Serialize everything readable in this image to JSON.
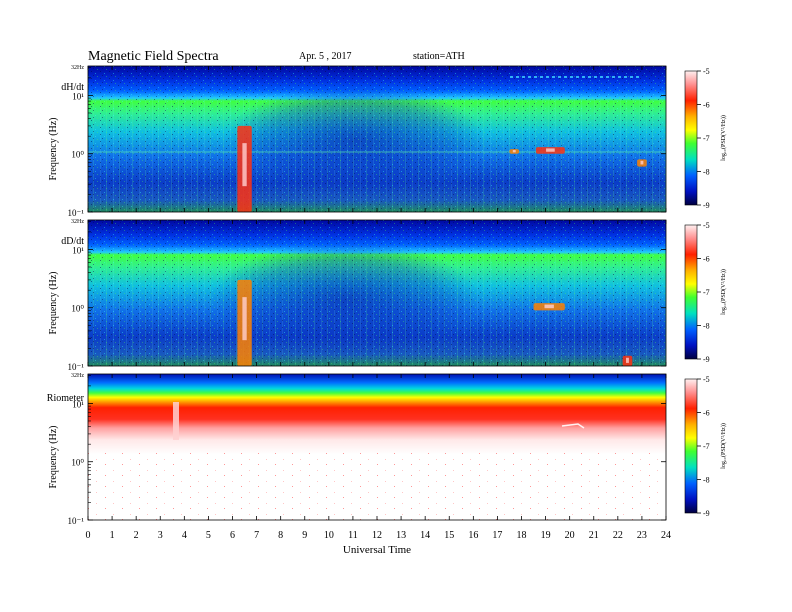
{
  "header": {
    "title": "Magnetic  Field  Spectra",
    "date": "Apr. 5  , 2017",
    "station": "station=ATH"
  },
  "chart_data": [
    {
      "type": "heatmap",
      "panel_label": "dH/dt",
      "ylabel": "Frequency  (Hz)",
      "y_scale": "log",
      "y_top_label": "32Hz",
      "y_ticks": [
        "10¹",
        "10⁰",
        "10⁻¹"
      ],
      "x_ticks": [
        "0",
        "1",
        "2",
        "3",
        "4",
        "5",
        "6",
        "7",
        "8",
        "9",
        "10",
        "11",
        "12",
        "13",
        "14",
        "15",
        "16",
        "17",
        "18",
        "19",
        "20",
        "21",
        "22",
        "23",
        "24"
      ],
      "colorbar_ticks": [
        "-5",
        "-6",
        "-7",
        "-8",
        "-9"
      ],
      "colorbar_label": "log₁₀(PSD(V²/Hz))",
      "colorbar_range": [
        -9,
        -5
      ],
      "features": [
        {
          "time": [
            6.2,
            6.8
          ],
          "freq": [
            0.1,
            3
          ],
          "level": -6
        },
        {
          "time": [
            17.5,
            17.9
          ],
          "freq": [
            1.0,
            1.2
          ],
          "level": -7
        },
        {
          "time": [
            18.6,
            19.8
          ],
          "freq": [
            1.0,
            1.3
          ],
          "level": -6
        },
        {
          "time": [
            22.8,
            23.2
          ],
          "freq": [
            0.6,
            0.8
          ],
          "level": -7
        }
      ]
    },
    {
      "type": "heatmap",
      "panel_label": "dD/dt",
      "ylabel": "Frequency  (Hz)",
      "y_scale": "log",
      "y_top_label": "32Hz",
      "y_ticks": [
        "10¹",
        "10⁰",
        "10⁻¹"
      ],
      "colorbar_ticks": [
        "-5",
        "-6",
        "-7",
        "-8",
        "-9"
      ],
      "colorbar_label": "log₁₀(PSD(V²/Hz))",
      "colorbar_range": [
        -9,
        -5
      ],
      "features": [
        {
          "time": [
            6.2,
            6.8
          ],
          "freq": [
            0.1,
            3
          ],
          "level": -6.5
        },
        {
          "time": [
            18.5,
            19.8
          ],
          "freq": [
            0.9,
            1.2
          ],
          "level": -6.5
        },
        {
          "time": [
            22.2,
            22.6
          ],
          "freq": [
            0.1,
            0.15
          ],
          "level": -6
        }
      ]
    },
    {
      "type": "heatmap",
      "panel_label": "Riometer",
      "ylabel": "Frequency  (Hz)",
      "y_scale": "log",
      "y_top_label": "32Hz",
      "y_ticks": [
        "10¹",
        "10⁰",
        "10⁻¹"
      ],
      "colorbar_ticks": [
        "-5",
        "-6",
        "-7",
        "-8",
        "-9"
      ],
      "colorbar_label": "log₁₀(PSD(V²/Hz))",
      "colorbar_range": [
        -9,
        -5
      ],
      "xlabel": "Universal  Time",
      "x_ticks": [
        "0",
        "1",
        "2",
        "3",
        "4",
        "5",
        "6",
        "7",
        "8",
        "9",
        "10",
        "11",
        "12",
        "13",
        "14",
        "15",
        "16",
        "17",
        "18",
        "19",
        "20",
        "21",
        "22",
        "23",
        "24"
      ]
    }
  ]
}
